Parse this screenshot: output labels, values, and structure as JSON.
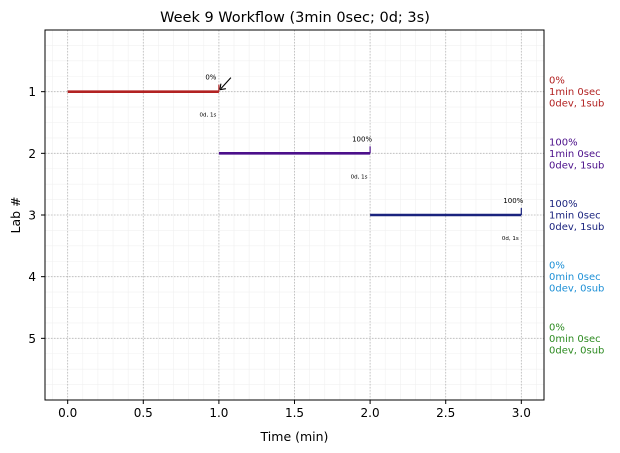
{
  "chart_data": {
    "type": "timeline",
    "title": "Week 9 Workflow (3min 0sec; 0d; 3s)",
    "xlabel": "Time (min)",
    "ylabel": "Lab #",
    "xlim": [
      -0.15,
      3.15
    ],
    "ylim": [
      0,
      6
    ],
    "y_inverted": true,
    "grid": true,
    "x_ticks": [
      0.0,
      0.5,
      1.0,
      1.5,
      2.0,
      2.5,
      3.0
    ],
    "x_tick_labels": [
      "0.0",
      "0.5",
      "1.0",
      "1.5",
      "2.0",
      "2.5",
      "3.0"
    ],
    "y_ticks": [
      1,
      2,
      3,
      4,
      5
    ],
    "y_tick_labels": [
      "1",
      "2",
      "3",
      "4",
      "5"
    ],
    "bars": [
      {
        "lab": 1,
        "start": 0.0,
        "end": 1.0,
        "color": "#b22222",
        "pct_label": "0%",
        "dev_label": "0d, 1s",
        "arrow": true
      },
      {
        "lab": 2,
        "start": 1.0,
        "end": 2.0,
        "color": "#4b0f8a",
        "pct_label": "100%",
        "dev_label": "0d, 1s",
        "arrow": false
      },
      {
        "lab": 3,
        "start": 2.0,
        "end": 3.0,
        "color": "#1a237e",
        "pct_label": "100%",
        "dev_label": "0d, 1s",
        "arrow": false
      }
    ],
    "side_labels": [
      {
        "lab": 1,
        "color": "#b22222",
        "lines": [
          "0%",
          "1min 0sec",
          "0dev, 1sub"
        ]
      },
      {
        "lab": 2,
        "color": "#4b0f8a",
        "lines": [
          "100%",
          "1min 0sec",
          "0dev, 1sub"
        ]
      },
      {
        "lab": 3,
        "color": "#1a237e",
        "lines": [
          "100%",
          "1min 0sec",
          "0dev, 1sub"
        ]
      },
      {
        "lab": 4,
        "color": "#1e90d6",
        "lines": [
          "0%",
          "0min 0sec",
          "0dev, 0sub"
        ]
      },
      {
        "lab": 5,
        "color": "#2e8b22",
        "lines": [
          "0%",
          "0min 0sec",
          "0dev, 0sub"
        ]
      }
    ]
  }
}
